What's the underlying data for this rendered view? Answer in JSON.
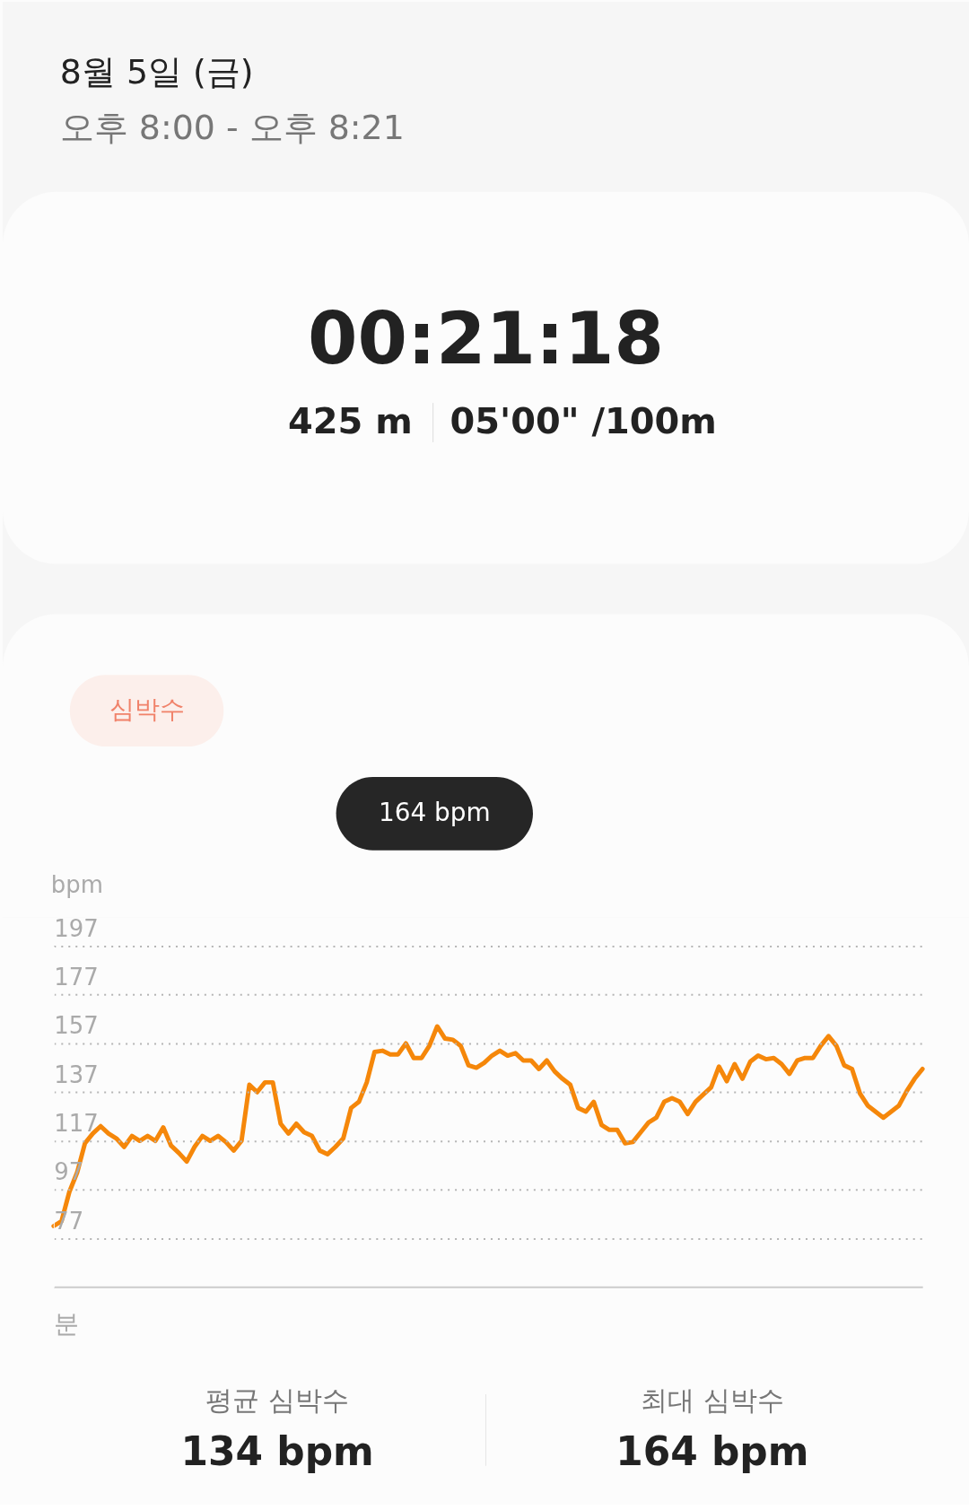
{
  "chart_data": {
    "type": "line",
    "title": "8월 5일 (금)",
    "subtitle": "오후 8:00 - 오후 8:21",
    "xlabel": "분",
    "ylabel": "bpm",
    "categories": [
      null,
      null,
      null,
      null,
      null,
      null,
      null,
      null,
      null,
      null,
      null,
      null,
      null,
      null,
      null,
      null,
      null,
      null,
      null,
      null,
      null,
      null,
      null,
      null,
      null,
      null,
      null,
      null,
      null,
      null,
      null,
      null,
      null,
      null,
      null,
      null,
      null,
      null,
      null,
      null,
      null,
      null,
      null,
      null,
      null,
      null,
      null,
      null,
      null,
      null,
      null,
      null,
      null,
      null,
      null,
      null,
      null,
      null,
      null,
      null,
      null,
      null,
      null,
      null,
      null,
      null,
      null,
      null,
      null,
      null,
      null,
      null,
      null,
      null,
      null,
      null,
      null,
      null,
      null,
      null,
      null,
      null,
      null,
      null,
      null,
      null,
      null,
      null,
      null,
      null,
      null,
      null,
      null,
      null,
      null,
      null,
      null,
      null,
      null,
      null,
      null,
      null,
      null,
      null,
      null,
      null,
      null,
      null,
      null,
      null,
      null,
      null
    ],
    "series": [
      {
        "color": "#f5870a",
        "values": [
          82,
          84,
          96,
          104,
          116,
          120,
          123,
          120,
          118,
          114.5,
          119,
          117,
          119,
          117,
          122.5,
          115,
          112,
          108.5,
          114.5,
          119,
          117,
          119,
          116.5,
          113,
          117,
          140,
          137,
          141,
          141,
          124,
          120,
          124,
          120.5,
          119,
          113,
          111.5,
          114.5,
          118,
          130.5,
          133,
          141,
          153.5,
          154,
          152.5,
          152.5,
          157,
          151,
          151,
          156,
          164,
          159,
          158.5,
          156,
          148,
          147,
          149,
          152,
          154,
          152,
          153,
          150,
          150,
          146.5,
          150,
          145.5,
          142.5,
          140,
          130.5,
          129,
          133,
          123.5,
          121.5,
          121.5,
          116,
          116.5,
          120.5,
          124.5,
          126.5,
          133,
          134.5,
          133,
          128,
          133,
          136,
          139,
          147.5,
          141.5,
          148.5,
          142.5,
          149.5,
          152,
          150.5,
          151,
          148.5,
          144.5,
          150,
          151,
          151,
          156,
          160,
          156,
          148,
          146.5,
          136.5,
          131.5,
          129,
          126.5,
          129,
          131.5,
          137.5,
          142.5,
          146.5
        ]
      }
    ],
    "ylim": [
      57,
      197
    ],
    "yticks": [
      77,
      97,
      117,
      137,
      157,
      177,
      197
    ],
    "grid": "y",
    "line_style": "solid",
    "marker": "none",
    "tick_labels": "y",
    "annotations": [
      "00:21:18",
      "425 m",
      "05'00\" /100m",
      "심박수",
      "164 bpm",
      "평균 심박수",
      "134 bpm",
      "최대 심박수",
      "164 bpm"
    ]
  }
}
